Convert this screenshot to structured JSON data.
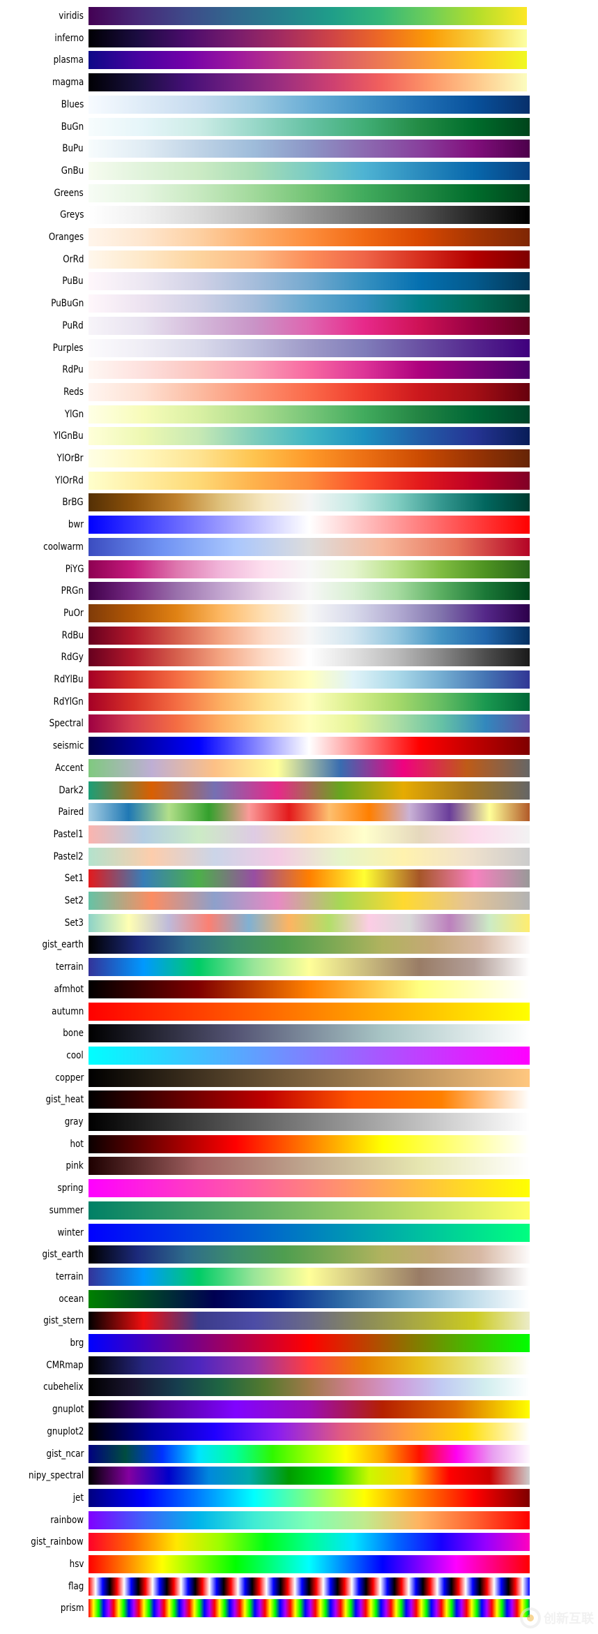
{
  "chart_data": {
    "type": "heatmap",
    "title": "",
    "colormaps": [
      {
        "name": "viridis",
        "colors": [
          "#440154",
          "#482878",
          "#3e4a89",
          "#31688e",
          "#26828e",
          "#1f9e89",
          "#35b779",
          "#6ece58",
          "#b5de2b",
          "#fde725"
        ]
      },
      {
        "name": "inferno",
        "colors": [
          "#000004",
          "#1b0c41",
          "#4a0c6b",
          "#781c6d",
          "#a52c60",
          "#cf4446",
          "#ed6925",
          "#fb9b06",
          "#f7d13d",
          "#fcffa4"
        ]
      },
      {
        "name": "plasma",
        "colors": [
          "#0d0887",
          "#46039f",
          "#7201a8",
          "#9c179e",
          "#bd3786",
          "#d8576b",
          "#ed7953",
          "#fb9f3a",
          "#fdca26",
          "#f0f921"
        ]
      },
      {
        "name": "magma",
        "colors": [
          "#000004",
          "#180f3d",
          "#440f76",
          "#721f81",
          "#9e2f7f",
          "#cd4071",
          "#f1605d",
          "#fd9668",
          "#feca8d",
          "#fcfdbf"
        ]
      },
      {
        "name": "Blues",
        "colors": [
          "#f7fbff",
          "#deebf7",
          "#c6dbef",
          "#9ecae1",
          "#6baed6",
          "#4292c6",
          "#2171b5",
          "#08519c",
          "#08306b"
        ]
      },
      {
        "name": "BuGn",
        "colors": [
          "#f7fcfd",
          "#e5f5f9",
          "#ccece6",
          "#99d8c9",
          "#66c2a4",
          "#41ae76",
          "#238b45",
          "#006d2c",
          "#00441b"
        ]
      },
      {
        "name": "BuPu",
        "colors": [
          "#f7fcfd",
          "#e0ecf4",
          "#bfd3e6",
          "#9ebcda",
          "#8c96c6",
          "#8c6bb1",
          "#88419d",
          "#810f7c",
          "#4d004b"
        ]
      },
      {
        "name": "GnBu",
        "colors": [
          "#f7fcf0",
          "#e0f3db",
          "#ccebc5",
          "#a8ddb5",
          "#7bccc4",
          "#4eb3d3",
          "#2b8cbe",
          "#0868ac",
          "#084081"
        ]
      },
      {
        "name": "Greens",
        "colors": [
          "#f7fcf5",
          "#e5f5e0",
          "#c7e9c0",
          "#a1d99b",
          "#74c476",
          "#41ab5d",
          "#238b45",
          "#006d2c",
          "#00441b"
        ]
      },
      {
        "name": "Greys",
        "colors": [
          "#ffffff",
          "#f0f0f0",
          "#d9d9d9",
          "#bdbdbd",
          "#969696",
          "#737373",
          "#525252",
          "#252525",
          "#000000"
        ]
      },
      {
        "name": "Oranges",
        "colors": [
          "#fff5eb",
          "#fee6ce",
          "#fdd0a2",
          "#fdae6b",
          "#fd8d3c",
          "#f16913",
          "#d94801",
          "#a63603",
          "#7f2704"
        ]
      },
      {
        "name": "OrRd",
        "colors": [
          "#fff7ec",
          "#fee8c8",
          "#fdd49e",
          "#fdbb84",
          "#fc8d59",
          "#ef6548",
          "#d7301f",
          "#b30000",
          "#7f0000"
        ]
      },
      {
        "name": "PuBu",
        "colors": [
          "#fff7fb",
          "#ece7f2",
          "#d0d1e6",
          "#a6bddb",
          "#74a9cf",
          "#3690c0",
          "#0570b0",
          "#045a8d",
          "#023858"
        ]
      },
      {
        "name": "PuBuGn",
        "colors": [
          "#fff7fb",
          "#ece2f0",
          "#d0d1e6",
          "#a6bddb",
          "#67a9cf",
          "#3690c0",
          "#02818a",
          "#016c59",
          "#014636"
        ]
      },
      {
        "name": "PuRd",
        "colors": [
          "#f7f4f9",
          "#e7e1ef",
          "#d4b9da",
          "#c994c7",
          "#df65b0",
          "#e7298a",
          "#ce1256",
          "#980043",
          "#67001f"
        ]
      },
      {
        "name": "Purples",
        "colors": [
          "#fcfbfd",
          "#efedf5",
          "#dadaeb",
          "#bcbddc",
          "#9e9ac8",
          "#807dba",
          "#6a51a3",
          "#54278f",
          "#3f007d"
        ]
      },
      {
        "name": "RdPu",
        "colors": [
          "#fff7f3",
          "#fde0dd",
          "#fcc5c0",
          "#fa9fb5",
          "#f768a1",
          "#dd3497",
          "#ae017e",
          "#7a0177",
          "#49006a"
        ]
      },
      {
        "name": "Reds",
        "colors": [
          "#fff5f0",
          "#fee0d2",
          "#fcbba1",
          "#fc9272",
          "#fb6a4a",
          "#ef3b2c",
          "#cb181d",
          "#a50f15",
          "#67000d"
        ]
      },
      {
        "name": "YlGn",
        "colors": [
          "#ffffe5",
          "#f7fcb9",
          "#d9f0a3",
          "#addd8e",
          "#78c679",
          "#41ab5d",
          "#238443",
          "#006837",
          "#004529"
        ]
      },
      {
        "name": "YlGnBu",
        "colors": [
          "#ffffd9",
          "#edf8b1",
          "#c7e9b4",
          "#7fcdbb",
          "#41b6c4",
          "#1d91c0",
          "#225ea8",
          "#253494",
          "#081d58"
        ]
      },
      {
        "name": "YlOrBr",
        "colors": [
          "#ffffe5",
          "#fff7bc",
          "#fee391",
          "#fec44f",
          "#fe9929",
          "#ec7014",
          "#cc4c02",
          "#993404",
          "#662506"
        ]
      },
      {
        "name": "YlOrRd",
        "colors": [
          "#ffffcc",
          "#ffeda0",
          "#fed976",
          "#feb24c",
          "#fd8d3c",
          "#fc4e2a",
          "#e31a1c",
          "#bd0026",
          "#800026"
        ]
      },
      {
        "name": "BrBG",
        "colors": [
          "#543005",
          "#8c510a",
          "#bf812d",
          "#dfc27d",
          "#f6e8c3",
          "#f5f5f5",
          "#c7eae5",
          "#80cdc1",
          "#35978f",
          "#01665e",
          "#003c30"
        ]
      },
      {
        "name": "bwr",
        "colors": [
          "#0000ff",
          "#ffffff",
          "#ff0000"
        ]
      },
      {
        "name": "coolwarm",
        "colors": [
          "#3b4cc0",
          "#6f92f3",
          "#aac7fd",
          "#dddcdc",
          "#f7b89c",
          "#e7745b",
          "#b40426"
        ]
      },
      {
        "name": "PiYG",
        "colors": [
          "#8e0152",
          "#c51b7d",
          "#de77ae",
          "#f1b6da",
          "#fde0ef",
          "#f7f7f7",
          "#e6f5d0",
          "#b8e186",
          "#7fbc41",
          "#4d9221",
          "#276419"
        ]
      },
      {
        "name": "PRGn",
        "colors": [
          "#40004b",
          "#762a83",
          "#9970ab",
          "#c2a5cf",
          "#e7d4e8",
          "#f7f7f7",
          "#d9f0d3",
          "#a6dba0",
          "#5aae61",
          "#1b7837",
          "#00441b"
        ]
      },
      {
        "name": "PuOr",
        "colors": [
          "#7f3b08",
          "#b35806",
          "#e08214",
          "#fdb863",
          "#fee0b6",
          "#f7f7f7",
          "#d8daeb",
          "#b2abd2",
          "#8073ac",
          "#542788",
          "#2d004b"
        ]
      },
      {
        "name": "RdBu",
        "colors": [
          "#67001f",
          "#b2182b",
          "#d6604d",
          "#f4a582",
          "#fddbc7",
          "#f7f7f7",
          "#d1e5f0",
          "#92c5de",
          "#4393c3",
          "#2166ac",
          "#053061"
        ]
      },
      {
        "name": "RdGy",
        "colors": [
          "#67001f",
          "#b2182b",
          "#d6604d",
          "#f4a582",
          "#fddbc7",
          "#ffffff",
          "#e0e0e0",
          "#bababa",
          "#878787",
          "#4d4d4d",
          "#1a1a1a"
        ]
      },
      {
        "name": "RdYlBu",
        "colors": [
          "#a50026",
          "#d73027",
          "#f46d43",
          "#fdae61",
          "#fee090",
          "#ffffbf",
          "#e0f3f8",
          "#abd9e9",
          "#74add1",
          "#4575b4",
          "#313695"
        ]
      },
      {
        "name": "RdYlGn",
        "colors": [
          "#a50026",
          "#d73027",
          "#f46d43",
          "#fdae61",
          "#fee08b",
          "#ffffbf",
          "#d9ef8b",
          "#a6d96a",
          "#66bd63",
          "#1a9850",
          "#006837"
        ]
      },
      {
        "name": "Spectral",
        "colors": [
          "#9e0142",
          "#d53e4f",
          "#f46d43",
          "#fdae61",
          "#fee08b",
          "#ffffbf",
          "#e6f598",
          "#abdda4",
          "#66c2a5",
          "#3288bd",
          "#5e4fa2"
        ]
      },
      {
        "name": "seismic",
        "colors": [
          "#00004c",
          "#0000ff",
          "#ffffff",
          "#ff0000",
          "#7f0000"
        ]
      },
      {
        "name": "Accent",
        "colors": [
          "#7fc97f",
          "#beaed4",
          "#fdc086",
          "#ffff99",
          "#386cb0",
          "#f0027f",
          "#bf5b17",
          "#666666"
        ]
      },
      {
        "name": "Dark2",
        "colors": [
          "#1b9e77",
          "#d95f02",
          "#7570b3",
          "#e7298a",
          "#66a61e",
          "#e6ab02",
          "#a6761d",
          "#666666"
        ]
      },
      {
        "name": "Paired",
        "colors": [
          "#a6cee3",
          "#1f78b4",
          "#b2df8a",
          "#33a02c",
          "#fb9a99",
          "#e31a1c",
          "#fdbf6f",
          "#ff7f00",
          "#cab2d6",
          "#6a3d9a",
          "#ffff99",
          "#b15928"
        ]
      },
      {
        "name": "Pastel1",
        "colors": [
          "#fbb4ae",
          "#b3cde3",
          "#ccebc5",
          "#decbe4",
          "#fed9a6",
          "#ffffcc",
          "#e5d8bd",
          "#fddaec",
          "#f2f2f2"
        ]
      },
      {
        "name": "Pastel2",
        "colors": [
          "#b3e2cd",
          "#fdcdac",
          "#cbd5e8",
          "#f4cae4",
          "#e6f5c9",
          "#fff2ae",
          "#f1e2cc",
          "#cccccc"
        ]
      },
      {
        "name": "Set1",
        "colors": [
          "#e41a1c",
          "#377eb8",
          "#4daf4a",
          "#984ea3",
          "#ff7f00",
          "#ffff33",
          "#a65628",
          "#f781bf",
          "#999999"
        ]
      },
      {
        "name": "Set2",
        "colors": [
          "#66c2a5",
          "#fc8d62",
          "#8da0cb",
          "#e78ac3",
          "#a6d854",
          "#ffd92f",
          "#e5c494",
          "#b3b3b3"
        ]
      },
      {
        "name": "Set3",
        "colors": [
          "#8dd3c7",
          "#ffffb3",
          "#bebada",
          "#fb8072",
          "#80b1d3",
          "#fdb462",
          "#b3de69",
          "#fccde5",
          "#d9d9d9",
          "#bc80bd",
          "#ccebc5",
          "#ffed6f"
        ]
      },
      {
        "name": "gist_earth",
        "colors": [
          "#000000",
          "#1c2a7c",
          "#2e6b8a",
          "#3d8d6c",
          "#4f9e4f",
          "#7ea954",
          "#b1b35f",
          "#c4a876",
          "#d8b9a5",
          "#fdfbfb"
        ]
      },
      {
        "name": "terrain",
        "colors": [
          "#333399",
          "#0099ff",
          "#00cc66",
          "#99e599",
          "#ffff99",
          "#ccbe7f",
          "#997c66",
          "#b39f99",
          "#ffffff"
        ]
      },
      {
        "name": "afmhot",
        "colors": [
          "#000000",
          "#800000",
          "#ff8000",
          "#ffff80",
          "#ffffff"
        ]
      },
      {
        "name": "autumn",
        "colors": [
          "#ff0000",
          "#ffff00"
        ]
      },
      {
        "name": "bone",
        "colors": [
          "#000000",
          "#545474",
          "#a8c5c5",
          "#ffffff"
        ]
      },
      {
        "name": "cool",
        "colors": [
          "#00ffff",
          "#ff00ff"
        ]
      },
      {
        "name": "copper",
        "colors": [
          "#000000",
          "#ffc77f"
        ]
      },
      {
        "name": "gist_heat",
        "colors": [
          "#000000",
          "#600000",
          "#bf0000",
          "#ff5500",
          "#ff8000",
          "#ffffff"
        ]
      },
      {
        "name": "gray",
        "colors": [
          "#000000",
          "#ffffff"
        ]
      },
      {
        "name": "hot",
        "colors": [
          "#0b0000",
          "#ff0000",
          "#ffff00",
          "#ffffff"
        ]
      },
      {
        "name": "pink",
        "colors": [
          "#1e0000",
          "#a06060",
          "#c0a890",
          "#e6e6b0",
          "#ffffff"
        ]
      },
      {
        "name": "spring",
        "colors": [
          "#ff00ff",
          "#ffff00"
        ]
      },
      {
        "name": "summer",
        "colors": [
          "#008066",
          "#ffff66"
        ]
      },
      {
        "name": "winter",
        "colors": [
          "#0000ff",
          "#00ff80"
        ]
      },
      {
        "name": "gist_earth",
        "colors": [
          "#000000",
          "#1c2a7c",
          "#2e6b8a",
          "#3d8d6c",
          "#4f9e4f",
          "#7ea954",
          "#b1b35f",
          "#c4a876",
          "#d8b9a5",
          "#fdfbfb"
        ]
      },
      {
        "name": "terrain",
        "colors": [
          "#333399",
          "#0099ff",
          "#00cc66",
          "#99e599",
          "#ffff99",
          "#ccbe7f",
          "#997c66",
          "#b39f99",
          "#ffffff"
        ]
      },
      {
        "name": "ocean",
        "colors": [
          "#008000",
          "#00402b",
          "#000052",
          "#00208c",
          "#2e6aa6",
          "#70a8cc",
          "#b8d8e8",
          "#ffffff"
        ]
      },
      {
        "name": "gist_stern",
        "colors": [
          "#000000",
          "#f00f0f",
          "#3b3b8a",
          "#4c4ca6",
          "#6a6a86",
          "#8a8a5a",
          "#abab40",
          "#cbcb20",
          "#ececc8"
        ]
      },
      {
        "name": "brg",
        "colors": [
          "#0000ff",
          "#ff0000",
          "#00ff00"
        ]
      },
      {
        "name": "CMRmap",
        "colors": [
          "#000000",
          "#262680",
          "#4d26bf",
          "#9933a6",
          "#ff3d40",
          "#e67f00",
          "#e6bf1a",
          "#e6e680",
          "#ffffff"
        ]
      },
      {
        "name": "cubehelix",
        "colors": [
          "#000000",
          "#1a1530",
          "#163d4e",
          "#1f6642",
          "#54792f",
          "#a07949",
          "#d07e93",
          "#cf9cda",
          "#c1caf3",
          "#d2eeef",
          "#ffffff"
        ]
      },
      {
        "name": "gnuplot",
        "colors": [
          "#000000",
          "#500095",
          "#8004ff",
          "#9c0db4",
          "#b52000",
          "#dd6c00",
          "#ffff00"
        ]
      },
      {
        "name": "gnuplot2",
        "colors": [
          "#000000",
          "#0000a0",
          "#2000ff",
          "#8a1df0",
          "#e05a82",
          "#ff9a40",
          "#ffdd00",
          "#ffffff"
        ]
      },
      {
        "name": "gist_ncar",
        "colors": [
          "#000080",
          "#004d40",
          "#0031ff",
          "#00e5ff",
          "#00ff9b",
          "#2ff800",
          "#9bff00",
          "#ffff00",
          "#ffa600",
          "#ff1100",
          "#ff00f0",
          "#e8a0f0",
          "#fef8fe"
        ]
      },
      {
        "name": "nipy_spectral",
        "colors": [
          "#000000",
          "#8400a0",
          "#0000ca",
          "#0088dd",
          "#00aaaa",
          "#009c00",
          "#00dd00",
          "#ccf800",
          "#ffcc00",
          "#ff0000",
          "#cc0000",
          "#cccccc"
        ]
      },
      {
        "name": "jet",
        "colors": [
          "#00007f",
          "#0000ff",
          "#007fff",
          "#00ffff",
          "#7fff7f",
          "#ffff00",
          "#ff7f00",
          "#ff0000",
          "#7f0000"
        ]
      },
      {
        "name": "rainbow",
        "colors": [
          "#8000ff",
          "#4062fa",
          "#00b5eb",
          "#40ecd4",
          "#80ffb4",
          "#c0eb8d",
          "#ffb360",
          "#ff6230",
          "#ff0000"
        ]
      },
      {
        "name": "gist_rainbow",
        "colors": [
          "#ff0029",
          "#ff6800",
          "#ffe800",
          "#99ff00",
          "#00ff16",
          "#00ff94",
          "#00e5ff",
          "#0066ff",
          "#1700ff",
          "#9600ff",
          "#ff00bf"
        ]
      },
      {
        "name": "hsv",
        "colors": [
          "#ff0000",
          "#ffff00",
          "#00ff00",
          "#00ffff",
          "#0000ff",
          "#ff00ff",
          "#ff0000"
        ]
      },
      {
        "name": "flag",
        "colors": [
          "#ff0000",
          "#ffffff",
          "#0000ff",
          "#000000",
          "#ff0000"
        ],
        "cycles": 15.5
      },
      {
        "name": "prism",
        "colors": [
          "#ff0000",
          "#ffff00",
          "#00ff00",
          "#0000ff",
          "#aa00ff",
          "#ff0000"
        ],
        "cycles": 17.5
      }
    ]
  },
  "watermark": {
    "text": "创新互联"
  }
}
